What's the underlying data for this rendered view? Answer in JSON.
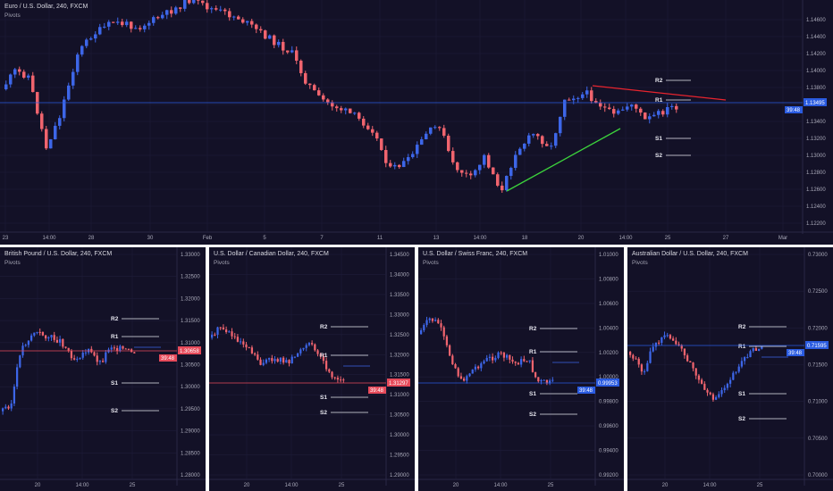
{
  "colors": {
    "background": "#131127",
    "separator": "#ffffff",
    "up_candle": "#3d66e8",
    "down_candle": "#f0646e",
    "grid": "#1f1d3a",
    "axis_text": "#a8a8b8",
    "pivot_line": "#e8e8f0",
    "price_line_blue": "#2a5be0",
    "price_line_red": "#e64a5a",
    "resistance_trendline": "#e8242e",
    "support_trendline": "#3cd23c"
  },
  "panels": [
    {
      "id": "eurusd",
      "title": "Euro / U.S. Dollar, 240, FXCM",
      "indicator": "Pivots",
      "price_tag": {
        "value": "1.13495",
        "countdown": "39:48",
        "color": "#2a5be0"
      },
      "pivot_labels": [
        "R2",
        "R1",
        "S1",
        "S2"
      ],
      "y_ticks": [
        "1.14600",
        "1.14400",
        "1.14200",
        "1.14000",
        "1.13800",
        "1.13600",
        "1.13400",
        "1.13200",
        "1.13000",
        "1.12800",
        "1.12600",
        "1.12400",
        "1.12200"
      ],
      "x_ticks": [
        "23",
        "14:00",
        "28",
        "30",
        "Feb",
        "5",
        "7",
        "11",
        "13",
        "14:00",
        "18",
        "20",
        "14:00",
        "25",
        "27",
        "Mar"
      ]
    },
    {
      "id": "gbpusd",
      "title": "British Pound / U.S. Dollar, 240, FXCM",
      "indicator": "Pivots",
      "price_tag": {
        "value": "1.30658",
        "countdown": "39:48",
        "color": "#e64a5a"
      },
      "pivot_labels": [
        "R2",
        "R1",
        "S1",
        "S2"
      ],
      "y_ticks": [
        "1.33000",
        "1.32500",
        "1.32000",
        "1.31500",
        "1.31000",
        "1.30500",
        "1.30000",
        "1.29500",
        "1.29000",
        "1.28500",
        "1.28000"
      ],
      "x_ticks": [
        "20",
        "14:00",
        "25"
      ]
    },
    {
      "id": "usdcad",
      "title": "U.S. Dollar / Canadian Dollar, 240, FXCM",
      "indicator": "Pivots",
      "price_tag": {
        "value": "1.31297",
        "countdown": "39:48",
        "color": "#e64a5a"
      },
      "pivot_labels": [
        "R2",
        "R1",
        "S1",
        "S2"
      ],
      "y_ticks": [
        "1.34500",
        "1.34000",
        "1.33500",
        "1.33000",
        "1.32500",
        "1.32000",
        "1.31500",
        "1.31000",
        "1.30500",
        "1.30000",
        "1.29500",
        "1.29000"
      ],
      "x_ticks": [
        "20",
        "14:00",
        "25"
      ]
    },
    {
      "id": "usdchf",
      "title": "U.S. Dollar / Swiss Franc, 240, FXCM",
      "indicator": "Pivots",
      "price_tag": {
        "value": "0.99953",
        "countdown": "39:48",
        "color": "#2a5be0"
      },
      "pivot_labels": [
        "R2",
        "R1",
        "S1",
        "S2"
      ],
      "y_ticks": [
        "1.01000",
        "1.00800",
        "1.00600",
        "1.00400",
        "1.00200",
        "1.00000",
        "0.99800",
        "0.99600",
        "0.99400",
        "0.99200"
      ],
      "x_ticks": [
        "20",
        "14:00",
        "25"
      ]
    },
    {
      "id": "audusd",
      "title": "Australian Dollar / U.S. Dollar, 240, FXCM",
      "indicator": "Pivots",
      "price_tag": {
        "value": "0.71595",
        "countdown": "39:48",
        "color": "#2a5be0"
      },
      "pivot_labels": [
        "R2",
        "R1",
        "S1",
        "S2"
      ],
      "y_ticks": [
        "0.73000",
        "0.72500",
        "0.72000",
        "0.71500",
        "0.71000",
        "0.70500",
        "0.70000"
      ],
      "x_ticks": [
        "20",
        "14:00",
        "25"
      ]
    }
  ]
}
